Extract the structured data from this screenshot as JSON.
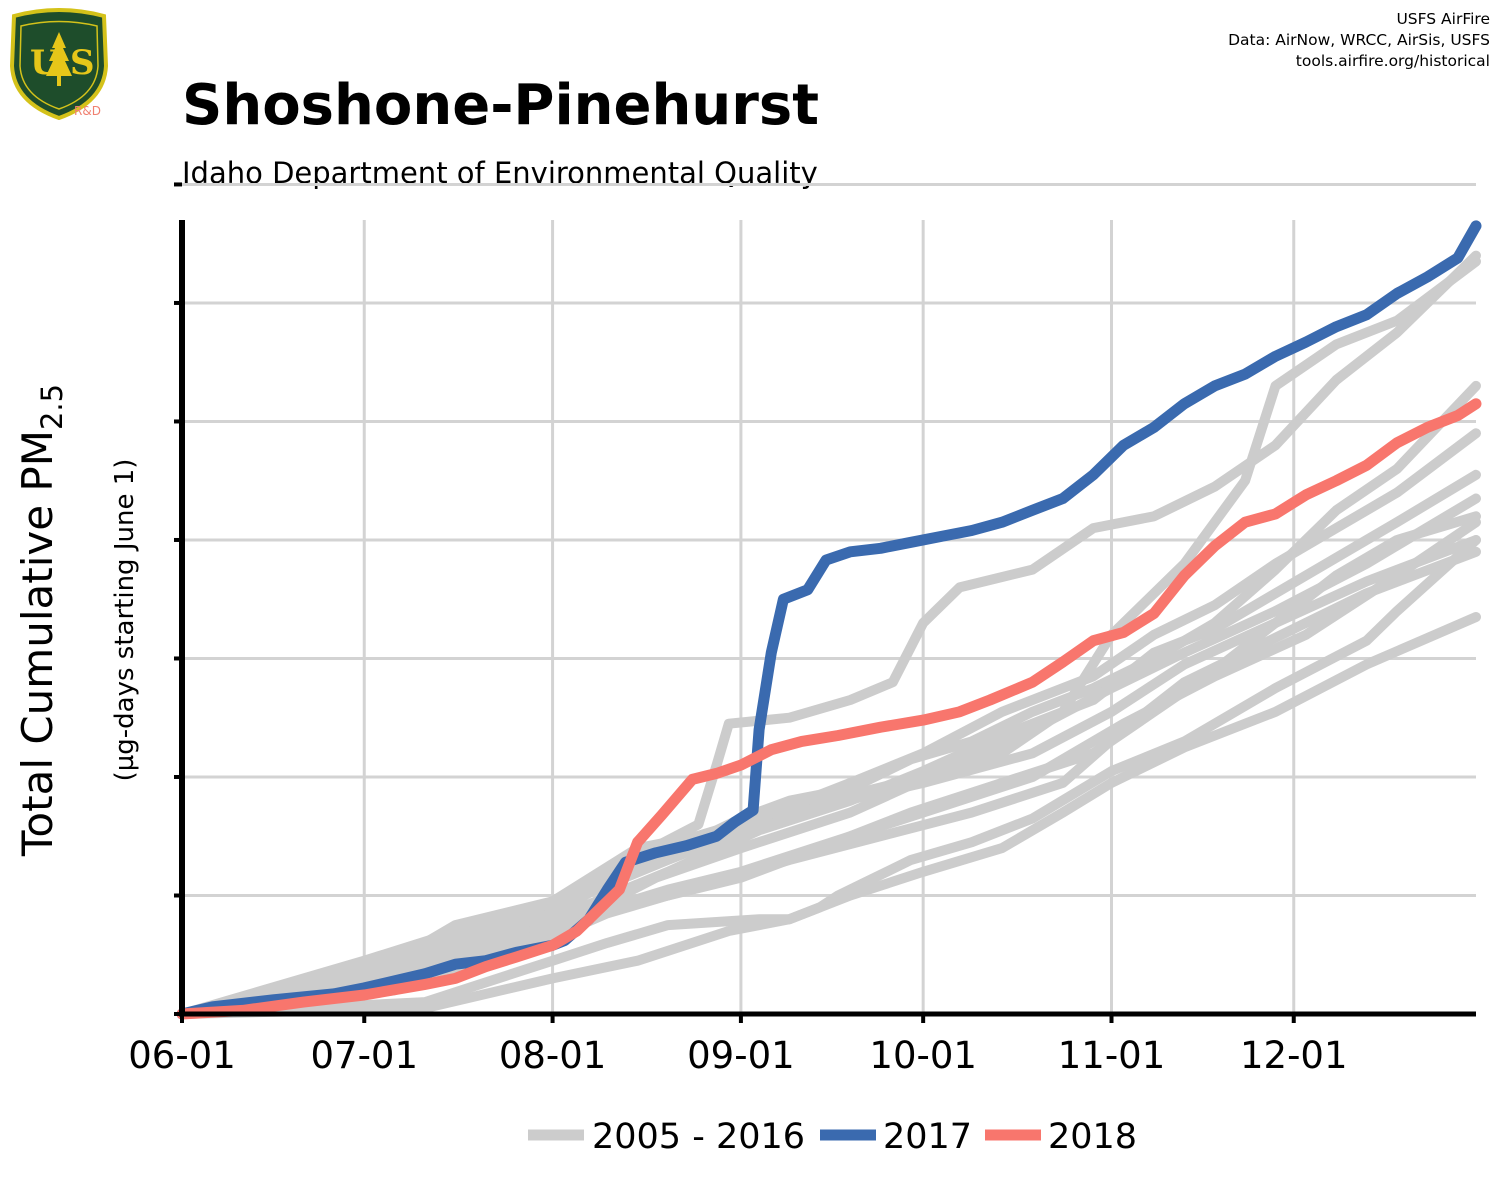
{
  "header": {
    "title": "Shoshone-Pinehurst",
    "subtitle": "Idaho Department of Environmental Quality",
    "credit_line1": "USFS AirFire",
    "credit_line2": "Data: AirNow, WRCC, AirSis, USFS",
    "credit_line3": "tools.airfire.org/historical"
  },
  "logo": {
    "top_text": "FOREST SERVICE",
    "letters": "US",
    "bottom_text": "DEPARTMENT OF AGRICULTURE",
    "tag": "R&D",
    "colors": {
      "shield": "#1e4d2b",
      "border": "#d4c21a",
      "letters": "#e6c619",
      "tag": "#f08070"
    }
  },
  "colors": {
    "background": "#ffffff",
    "grid": "#d3d3d3",
    "historical": "#cccccc",
    "y2017": "#3a6aaf",
    "y2018": "#f8766d"
  },
  "chart_data": {
    "type": "line",
    "title": "Shoshone-Pinehurst",
    "subtitle": "Idaho Department of Environmental Quality",
    "xlabel": "",
    "ylabel": "Total Cumulative PM2.5",
    "ylabel_main": "Total Cumulative PM",
    "ylabel_sub_script": "2.5",
    "ylabel_units": "(µg-days starting June 1)",
    "x_tick_labels": [
      "06-01",
      "07-01",
      "08-01",
      "09-01",
      "10-01",
      "11-01",
      "12-01"
    ],
    "x_tick_days": [
      0,
      30,
      61,
      92,
      122,
      153,
      183
    ],
    "x_max_days": 213,
    "y_tick_positions": [
      0,
      1,
      2,
      3,
      4,
      5,
      6,
      7
    ],
    "y_range": [
      0,
      6.7
    ],
    "y_tick_labels_shown": false,
    "grid": true,
    "legend_position": "bottom",
    "legend": [
      {
        "label": "2005 - 2016",
        "color": "#cccccc"
      },
      {
        "label": "2017",
        "color": "#3a6aaf"
      },
      {
        "label": "2018",
        "color": "#f8766d"
      }
    ],
    "series": [
      {
        "group": "2005 - 2016",
        "color": "#cccccc",
        "points": [
          [
            0,
            0
          ],
          [
            30,
            0.3
          ],
          [
            45,
            0.75
          ],
          [
            61,
            0.95
          ],
          [
            75,
            1.35
          ],
          [
            88,
            1.55
          ],
          [
            92,
            1.65
          ],
          [
            100,
            1.8
          ],
          [
            110,
            1.9
          ],
          [
            120,
            2.15
          ],
          [
            130,
            2.3
          ],
          [
            140,
            2.55
          ],
          [
            150,
            2.75
          ],
          [
            160,
            3.0
          ],
          [
            170,
            3.3
          ],
          [
            180,
            3.75
          ],
          [
            190,
            4.25
          ],
          [
            200,
            4.6
          ],
          [
            213,
            5.3
          ]
        ]
      },
      {
        "group": "2005 - 2016",
        "color": "#cccccc",
        "points": [
          [
            0,
            0
          ],
          [
            30,
            0.35
          ],
          [
            50,
            0.75
          ],
          [
            61,
            0.9
          ],
          [
            70,
            1.2
          ],
          [
            85,
            1.6
          ],
          [
            88,
            2.1
          ],
          [
            90,
            2.45
          ],
          [
            100,
            2.5
          ],
          [
            110,
            2.65
          ],
          [
            117,
            2.8
          ],
          [
            122,
            3.3
          ],
          [
            128,
            3.6
          ],
          [
            140,
            3.75
          ],
          [
            150,
            4.1
          ],
          [
            160,
            4.2
          ],
          [
            170,
            4.45
          ],
          [
            180,
            4.8
          ],
          [
            190,
            5.35
          ],
          [
            200,
            5.75
          ],
          [
            213,
            6.4
          ]
        ]
      },
      {
        "group": "2005 - 2016",
        "color": "#cccccc",
        "points": [
          [
            0,
            0
          ],
          [
            35,
            0.4
          ],
          [
            61,
            0.9
          ],
          [
            80,
            1.3
          ],
          [
            100,
            1.7
          ],
          [
            110,
            1.85
          ],
          [
            122,
            2.0
          ],
          [
            135,
            2.2
          ],
          [
            145,
            2.55
          ],
          [
            153,
            3.2
          ],
          [
            165,
            3.8
          ],
          [
            175,
            4.5
          ],
          [
            180,
            5.3
          ],
          [
            190,
            5.65
          ],
          [
            200,
            5.85
          ],
          [
            213,
            6.35
          ]
        ]
      },
      {
        "group": "2005 - 2016",
        "color": "#cccccc",
        "points": [
          [
            0,
            0
          ],
          [
            30,
            0.45
          ],
          [
            61,
            0.95
          ],
          [
            75,
            1.4
          ],
          [
            90,
            1.55
          ],
          [
            110,
            1.95
          ],
          [
            122,
            2.2
          ],
          [
            135,
            2.55
          ],
          [
            150,
            2.85
          ],
          [
            160,
            3.2
          ],
          [
            170,
            3.45
          ],
          [
            180,
            3.8
          ],
          [
            190,
            4.1
          ],
          [
            200,
            4.4
          ],
          [
            213,
            4.9
          ]
        ]
      },
      {
        "group": "2005 - 2016",
        "color": "#cccccc",
        "points": [
          [
            0,
            0
          ],
          [
            30,
            0.4
          ],
          [
            61,
            0.85
          ],
          [
            75,
            1.25
          ],
          [
            92,
            1.5
          ],
          [
            105,
            1.75
          ],
          [
            122,
            1.95
          ],
          [
            140,
            2.2
          ],
          [
            153,
            2.55
          ],
          [
            165,
            2.95
          ],
          [
            180,
            3.3
          ],
          [
            195,
            3.65
          ],
          [
            213,
            4.0
          ]
        ]
      },
      {
        "group": "2005 - 2016",
        "color": "#cccccc",
        "points": [
          [
            0,
            0
          ],
          [
            35,
            0.2
          ],
          [
            61,
            0.65
          ],
          [
            70,
            0.85
          ],
          [
            80,
            1.0
          ],
          [
            92,
            1.15
          ],
          [
            105,
            1.4
          ],
          [
            120,
            1.7
          ],
          [
            135,
            1.95
          ],
          [
            150,
            2.2
          ],
          [
            160,
            2.55
          ],
          [
            170,
            2.9
          ],
          [
            180,
            3.3
          ],
          [
            190,
            3.7
          ],
          [
            200,
            4.0
          ],
          [
            213,
            4.2
          ]
        ]
      },
      {
        "group": "2005 - 2016",
        "color": "#cccccc",
        "points": [
          [
            0,
            0
          ],
          [
            40,
            0.1
          ],
          [
            61,
            0.45
          ],
          [
            70,
            0.6
          ],
          [
            80,
            0.75
          ],
          [
            95,
            0.8
          ],
          [
            100,
            0.8
          ],
          [
            105,
            0.9
          ],
          [
            108,
            1.0
          ],
          [
            112,
            1.1
          ],
          [
            120,
            1.3
          ],
          [
            130,
            1.45
          ],
          [
            140,
            1.65
          ],
          [
            153,
            2.05
          ],
          [
            165,
            2.3
          ],
          [
            180,
            2.75
          ],
          [
            195,
            3.15
          ],
          [
            200,
            3.4
          ],
          [
            213,
            4.0
          ]
        ]
      },
      {
        "group": "2005 - 2016",
        "color": "#cccccc",
        "points": [
          [
            0,
            0
          ],
          [
            40,
            0.05
          ],
          [
            61,
            0.3
          ],
          [
            75,
            0.45
          ],
          [
            90,
            0.7
          ],
          [
            100,
            0.8
          ],
          [
            110,
            1.0
          ],
          [
            122,
            1.2
          ],
          [
            135,
            1.4
          ],
          [
            145,
            1.7
          ],
          [
            153,
            1.95
          ],
          [
            165,
            2.25
          ],
          [
            180,
            2.55
          ],
          [
            195,
            2.95
          ],
          [
            213,
            3.35
          ]
        ]
      },
      {
        "group": "2005 - 2016",
        "color": "#cccccc",
        "points": [
          [
            0,
            0
          ],
          [
            25,
            0.2
          ],
          [
            45,
            0.55
          ],
          [
            61,
            0.8
          ],
          [
            80,
            1.2
          ],
          [
            95,
            1.55
          ],
          [
            110,
            1.8
          ],
          [
            122,
            2.05
          ],
          [
            135,
            2.35
          ],
          [
            150,
            2.65
          ],
          [
            160,
            3.05
          ],
          [
            170,
            3.25
          ],
          [
            180,
            3.55
          ],
          [
            190,
            3.85
          ],
          [
            200,
            4.15
          ],
          [
            213,
            4.55
          ]
        ]
      },
      {
        "group": "2005 - 2016",
        "color": "#cccccc",
        "points": [
          [
            0,
            0
          ],
          [
            25,
            0.25
          ],
          [
            50,
            0.6
          ],
          [
            61,
            0.8
          ],
          [
            80,
            1.0
          ],
          [
            100,
            1.3
          ],
          [
            115,
            1.5
          ],
          [
            130,
            1.7
          ],
          [
            145,
            1.95
          ],
          [
            155,
            2.4
          ],
          [
            165,
            2.8
          ],
          [
            175,
            3.05
          ],
          [
            185,
            3.3
          ],
          [
            195,
            3.55
          ],
          [
            213,
            3.9
          ]
        ]
      },
      {
        "group": "2005 - 2016",
        "color": "#cccccc",
        "points": [
          [
            0,
            0
          ],
          [
            30,
            0.3
          ],
          [
            61,
            0.75
          ],
          [
            80,
            1.05
          ],
          [
            92,
            1.2
          ],
          [
            110,
            1.5
          ],
          [
            125,
            1.75
          ],
          [
            140,
            2.0
          ],
          [
            155,
            2.45
          ],
          [
            170,
            2.85
          ],
          [
            185,
            3.2
          ],
          [
            200,
            3.7
          ],
          [
            213,
            4.15
          ]
        ]
      },
      {
        "group": "2005 - 2016",
        "color": "#cccccc",
        "points": [
          [
            0,
            0
          ],
          [
            30,
            0.25
          ],
          [
            61,
            0.7
          ],
          [
            78,
            1.15
          ],
          [
            92,
            1.4
          ],
          [
            110,
            1.7
          ],
          [
            125,
            2.05
          ],
          [
            140,
            2.4
          ],
          [
            153,
            2.75
          ],
          [
            165,
            3.05
          ],
          [
            180,
            3.4
          ],
          [
            195,
            3.8
          ],
          [
            213,
            4.35
          ]
        ]
      },
      {
        "group": "2017",
        "color": "#3a6aaf",
        "points": [
          [
            0,
            0
          ],
          [
            5,
            0.06
          ],
          [
            15,
            0.12
          ],
          [
            25,
            0.17
          ],
          [
            30,
            0.22
          ],
          [
            40,
            0.34
          ],
          [
            45,
            0.42
          ],
          [
            50,
            0.45
          ],
          [
            55,
            0.52
          ],
          [
            61,
            0.58
          ],
          [
            63,
            0.62
          ],
          [
            67,
            0.8
          ],
          [
            70,
            1.05
          ],
          [
            73,
            1.28
          ],
          [
            78,
            1.36
          ],
          [
            83,
            1.42
          ],
          [
            88,
            1.5
          ],
          [
            91,
            1.62
          ],
          [
            94,
            1.72
          ],
          [
            95,
            2.4
          ],
          [
            97,
            3.05
          ],
          [
            99,
            3.5
          ],
          [
            103,
            3.58
          ],
          [
            106,
            3.83
          ],
          [
            110,
            3.9
          ],
          [
            115,
            3.93
          ],
          [
            120,
            3.98
          ],
          [
            125,
            4.03
          ],
          [
            130,
            4.08
          ],
          [
            135,
            4.15
          ],
          [
            140,
            4.25
          ],
          [
            145,
            4.35
          ],
          [
            150,
            4.55
          ],
          [
            155,
            4.8
          ],
          [
            160,
            4.95
          ],
          [
            165,
            5.15
          ],
          [
            170,
            5.3
          ],
          [
            175,
            5.4
          ],
          [
            180,
            5.55
          ],
          [
            185,
            5.67
          ],
          [
            190,
            5.8
          ],
          [
            195,
            5.9
          ],
          [
            200,
            6.08
          ],
          [
            205,
            6.22
          ],
          [
            210,
            6.38
          ],
          [
            213,
            6.65
          ]
        ]
      },
      {
        "group": "2018",
        "color": "#f8766d",
        "points": [
          [
            0,
            0
          ],
          [
            10,
            0.03
          ],
          [
            20,
            0.1
          ],
          [
            30,
            0.16
          ],
          [
            40,
            0.25
          ],
          [
            45,
            0.3
          ],
          [
            50,
            0.4
          ],
          [
            55,
            0.48
          ],
          [
            61,
            0.58
          ],
          [
            65,
            0.7
          ],
          [
            69,
            0.9
          ],
          [
            72,
            1.05
          ],
          [
            75,
            1.45
          ],
          [
            79,
            1.68
          ],
          [
            84,
            1.98
          ],
          [
            88,
            2.03
          ],
          [
            92,
            2.1
          ],
          [
            97,
            2.23
          ],
          [
            102,
            2.3
          ],
          [
            108,
            2.35
          ],
          [
            115,
            2.42
          ],
          [
            122,
            2.48
          ],
          [
            128,
            2.55
          ],
          [
            133,
            2.65
          ],
          [
            140,
            2.8
          ],
          [
            145,
            2.97
          ],
          [
            150,
            3.15
          ],
          [
            155,
            3.22
          ],
          [
            160,
            3.38
          ],
          [
            165,
            3.7
          ],
          [
            170,
            3.95
          ],
          [
            175,
            4.15
          ],
          [
            180,
            4.22
          ],
          [
            185,
            4.38
          ],
          [
            190,
            4.5
          ],
          [
            195,
            4.63
          ],
          [
            200,
            4.82
          ],
          [
            205,
            4.95
          ],
          [
            210,
            5.05
          ],
          [
            213,
            5.15
          ]
        ]
      }
    ]
  }
}
